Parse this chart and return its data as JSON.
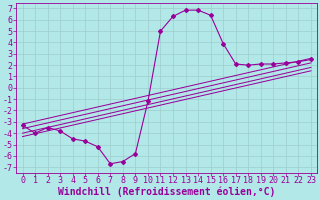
{
  "xlabel": "Windchill (Refroidissement éolien,°C)",
  "bg_color": "#b2e8e8",
  "grid_color": "#9ecece",
  "line_color": "#990099",
  "marker_color": "#990099",
  "xlim": [
    -0.5,
    23.5
  ],
  "ylim": [
    -7.5,
    7.5
  ],
  "xticks": [
    0,
    1,
    2,
    3,
    4,
    5,
    6,
    7,
    8,
    9,
    10,
    11,
    12,
    13,
    14,
    15,
    16,
    17,
    18,
    19,
    20,
    21,
    22,
    23
  ],
  "yticks": [
    7,
    6,
    5,
    4,
    3,
    2,
    1,
    0,
    -1,
    -2,
    -3,
    -4,
    -5,
    -6,
    -7
  ],
  "main_curve_x": [
    0,
    1,
    2,
    3,
    4,
    5,
    6,
    7,
    8,
    9,
    10,
    11,
    12,
    13,
    14,
    15,
    16,
    17,
    18,
    19,
    20,
    21,
    22,
    23
  ],
  "main_curve_y": [
    -3.3,
    -4.0,
    -3.5,
    -3.8,
    -4.5,
    -4.7,
    -5.2,
    -6.7,
    -6.5,
    -5.8,
    -1.2,
    5.0,
    6.3,
    6.85,
    6.85,
    6.4,
    3.9,
    2.1,
    2.0,
    2.1,
    2.1,
    2.2,
    2.3,
    2.5
  ],
  "ref_lines": [
    {
      "x": [
        0,
        23
      ],
      "y": [
        -3.2,
        2.6
      ]
    },
    {
      "x": [
        0,
        23
      ],
      "y": [
        -3.6,
        2.2
      ]
    },
    {
      "x": [
        0,
        23
      ],
      "y": [
        -4.0,
        1.8
      ]
    },
    {
      "x": [
        0,
        23
      ],
      "y": [
        -4.3,
        1.5
      ]
    }
  ],
  "font_color": "#990099",
  "font_size": 6,
  "xlabel_fontsize": 7
}
